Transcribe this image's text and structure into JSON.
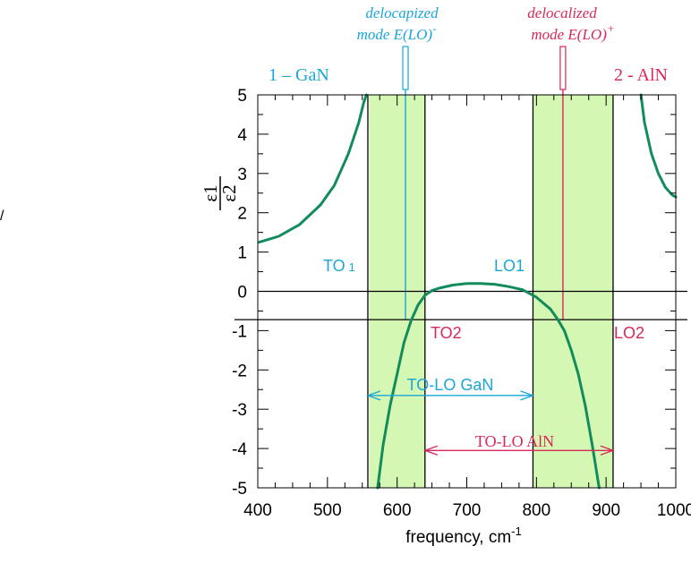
{
  "chart_data": {
    "type": "line",
    "xlabel": "frequency, cm",
    "xlabel_exponent": "-1",
    "ylabel_top": "ε1",
    "ylabel_bottom": "ε2",
    "xlim": [
      400,
      1000
    ],
    "ylim": [
      -5,
      5
    ],
    "x_ticks": [
      400,
      500,
      600,
      700,
      800,
      900,
      1000
    ],
    "y_ticks": [
      5,
      4,
      3,
      2,
      1,
      0,
      -1,
      -2,
      -3,
      -4,
      -5
    ],
    "grid": false,
    "series": [
      {
        "color": "#138c5c",
        "x": [
          402,
          430,
          460,
          490,
          510,
          530,
          545,
          552,
          556
        ],
        "y": [
          1.25,
          1.4,
          1.7,
          2.2,
          2.7,
          3.5,
          4.3,
          4.8,
          5.0
        ]
      },
      {
        "color": "#138c5c",
        "x": [
          572,
          580,
          590,
          600,
          610,
          620,
          630,
          640,
          650,
          660,
          680,
          700,
          720,
          740,
          760,
          780,
          800,
          820,
          830,
          840,
          850,
          860,
          870,
          880,
          890
        ],
        "y": [
          -5.0,
          -3.9,
          -2.9,
          -2.1,
          -1.3,
          -0.75,
          -0.35,
          -0.1,
          0.02,
          0.08,
          0.16,
          0.2,
          0.2,
          0.18,
          0.12,
          0.04,
          -0.15,
          -0.45,
          -0.7,
          -1.0,
          -1.5,
          -2.1,
          -2.9,
          -3.9,
          -5.0
        ]
      },
      {
        "color": "#138c5c",
        "x": [
          950,
          955,
          965,
          975,
          985,
          995,
          1000
        ],
        "y": [
          5.0,
          4.3,
          3.5,
          3.0,
          2.65,
          2.45,
          2.4
        ]
      }
    ],
    "shaded_bands": [
      {
        "x": [
          560,
          640
        ],
        "color": "#d4f7b4"
      },
      {
        "x": [
          795,
          910
        ],
        "color": "#d4f7b4"
      }
    ],
    "vertical_lines": [
      {
        "x": 558,
        "color": "#000000"
      },
      {
        "x": 640,
        "color": "#000000"
      },
      {
        "x": 795,
        "color": "#000000"
      },
      {
        "x": 910,
        "color": "#000000"
      },
      {
        "x": 612,
        "color": "#1aa6d6"
      },
      {
        "x": 838,
        "color": "#d8285a"
      }
    ],
    "horizontal_lines": [
      {
        "y": 0,
        "color": "#000000"
      },
      {
        "y": -0.72,
        "color": "#000000"
      }
    ],
    "arrows": [
      {
        "x": [
          558,
          795
        ],
        "y": -2.65,
        "color": "#1aa6d6"
      },
      {
        "x": [
          640,
          910
        ],
        "y": -4.05,
        "color": "#d8285a"
      }
    ],
    "annotations": {
      "label_1_gan": "1 – GaN",
      "label_2_aln": "2 - AlN",
      "delocapized_line1": "delocapized",
      "delocapized_line2": "mode  E(LO)",
      "delocapized_sup": "-",
      "delocalized_line1": "delocalized",
      "delocalized_line2": "mode  E(LO)",
      "delocalized_sup": "+",
      "to1": "TO",
      "to1_sub": "1",
      "lo1": "LO1",
      "to2": "TO2",
      "lo2": "LO2",
      "to_lo_gan": "TO-LO  GaN",
      "to_lo_aln": "TO-LO  AlN",
      "stray_mark": "/"
    },
    "colors": {
      "curve": "#138c5c",
      "band": "#d4f7b4",
      "gan": "#1aa6d6",
      "aln": "#d8285a"
    }
  }
}
